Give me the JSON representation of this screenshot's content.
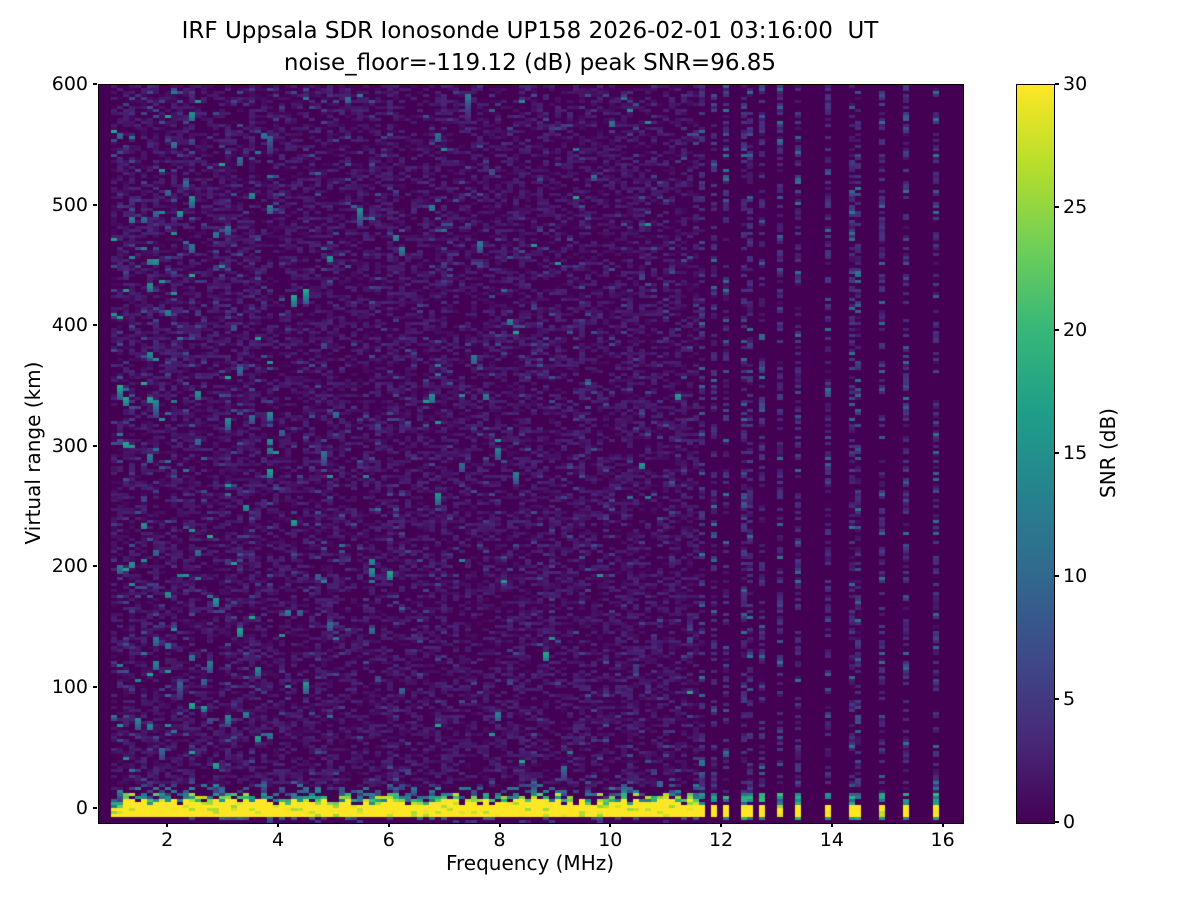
{
  "chart_data": {
    "type": "heatmap",
    "title": "IRF Uppsala SDR Ionosonde UP158 2026-02-01 03:16:00  UT",
    "subtitle": "noise_floor=-119.12 (dB) peak SNR=96.85",
    "xlabel": "Frequency (MHz)",
    "ylabel": "Virtual range (km)",
    "x_ticks": [
      2,
      4,
      6,
      8,
      10,
      12,
      14,
      16
    ],
    "y_ticks": [
      0,
      100,
      200,
      300,
      400,
      500,
      600
    ],
    "xlim": [
      0.75,
      16.35
    ],
    "ylim": [
      -12,
      600
    ],
    "grid": false,
    "legend_position": "none",
    "colorbar": {
      "label": "SNR (dB)",
      "ticks": [
        0,
        5,
        10,
        15,
        20,
        25,
        30
      ],
      "min": 0,
      "max": 30,
      "colormap": "viridis",
      "stops": [
        "#440154",
        "#482878",
        "#3e4989",
        "#31688e",
        "#26828e",
        "#1f9e89",
        "#35b779",
        "#6ece58",
        "#b5de2b",
        "#fde725"
      ]
    },
    "content": {
      "description": "Ionogram SNR map: near-zero-dB viridis-purple noise background with sparse speckle dashes, a saturated (>=30 dB) yellow ground-return band at ~0 km virtual range sweeping continuously from 1.0 to 11.55 MHz, then discrete sounding frequencies shown as dotted vertical stripes with short yellow ground-return bars near 0 km",
      "background_snr_db": 0,
      "noise_floor_db": -119.12,
      "peak_snr_db": 96.85,
      "sweep_start_mhz": 1.0,
      "sweep_end_mhz": 11.55,
      "ground_band_km": [
        -7,
        9
      ],
      "ground_band_snr_db": 30,
      "bottom_fringe_km": [
        -10.3,
        -8.3
      ],
      "discrete_freqs_mhz": [
        11.6,
        11.85,
        12.1,
        12.35,
        12.55,
        12.75,
        13.0,
        13.4,
        13.9,
        14.4,
        14.9,
        15.35,
        15.85
      ],
      "noisy_streak_freqs_mhz": [
        1.3,
        1.55,
        1.8,
        2.1,
        2.45,
        3.1,
        3.5,
        4.9,
        6.05,
        7.0,
        8.35,
        9.5,
        10.3
      ]
    }
  },
  "layout_colors": {
    "figure_bg": "#ffffff",
    "text": "#000000",
    "spine": "#000000"
  }
}
